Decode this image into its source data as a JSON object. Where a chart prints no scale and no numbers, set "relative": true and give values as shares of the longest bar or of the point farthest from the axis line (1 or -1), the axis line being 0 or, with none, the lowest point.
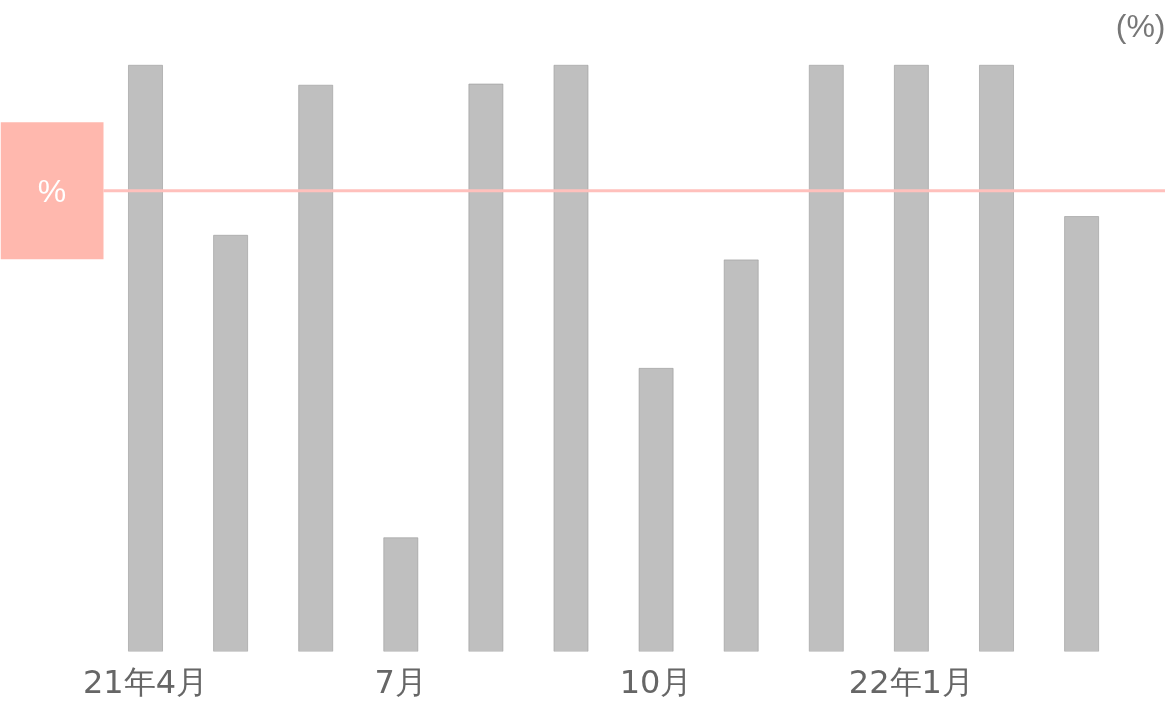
{
  "chart_data": {
    "type": "bar",
    "relative": true,
    "ylabel": "(%)",
    "categories": [
      "21年4月",
      null,
      null,
      "7月",
      null,
      null,
      "10月",
      null,
      null,
      "22年1月",
      null,
      null
    ],
    "values": [
      1,
      0.71,
      0.966,
      0.194,
      0.968,
      1,
      0.483,
      0.668,
      1,
      1,
      1,
      0.742
    ],
    "color": "#bfbfbf",
    "ref_lines": [
      {
        "axis": "y",
        "value": 0.786,
        "label": "%",
        "color": "#ffc0bc"
      }
    ],
    "grid": false
  }
}
